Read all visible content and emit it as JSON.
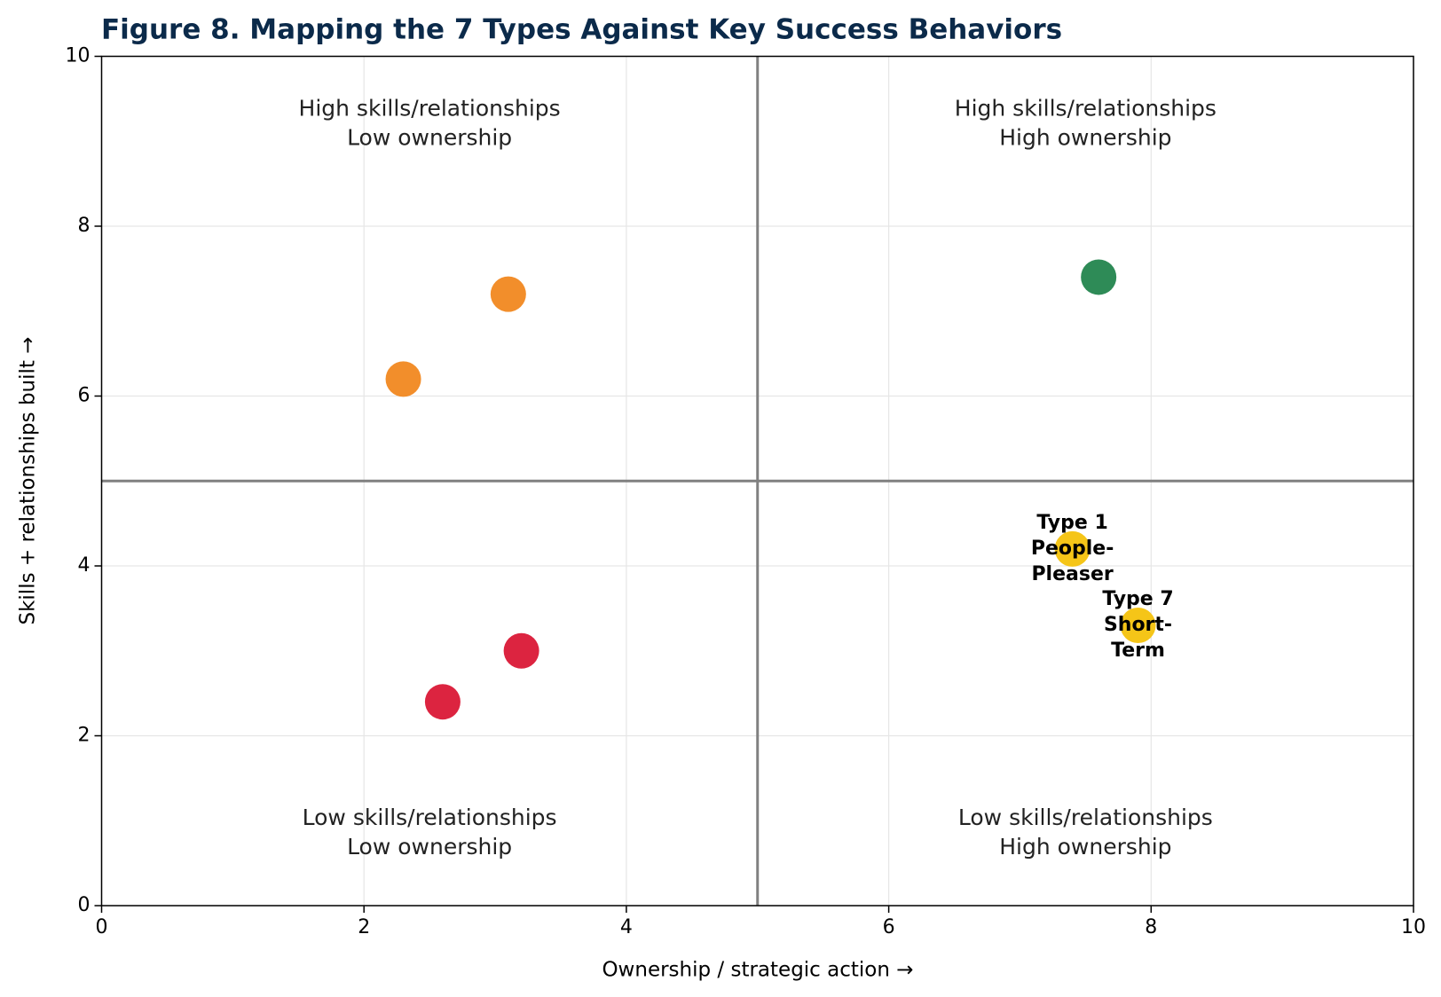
{
  "chart_data": {
    "type": "scatter",
    "title": "Figure 8. Mapping the 7 Types Against Key Success Behaviors",
    "x_label": "Ownership / strategic action →",
    "y_label": "Skills + relationships built →",
    "xlim": [
      0,
      10
    ],
    "ylim": [
      0,
      10
    ],
    "xticks": [
      0,
      2,
      4,
      6,
      8,
      10
    ],
    "yticks": [
      0,
      2,
      4,
      6,
      8,
      10
    ],
    "grid": true,
    "dividers": {
      "x": 5,
      "y": 5
    },
    "quadrant_labels": [
      "High skills/relationships\nLow ownership",
      "High skills/relationships\nHigh ownership",
      "Low skills/relationships\nLow ownership",
      "Low skills/relationships\nHigh ownership"
    ],
    "x": [
      7.6,
      3.1,
      2.3,
      7.4,
      7.9,
      3.2,
      2.6
    ],
    "y": [
      7.4,
      7.2,
      6.2,
      4.2,
      3.3,
      3.0,
      2.4
    ],
    "colors": [
      "#2e8b57",
      "#f28e2b",
      "#f28e2b",
      "#f5c518",
      "#f5c518",
      "#dc2440",
      "#dc2440"
    ],
    "labels": [
      null,
      null,
      null,
      "Type 1\nPeople-\nPleaser",
      "Type 7\nShort-\nTerm",
      null,
      null
    ]
  }
}
